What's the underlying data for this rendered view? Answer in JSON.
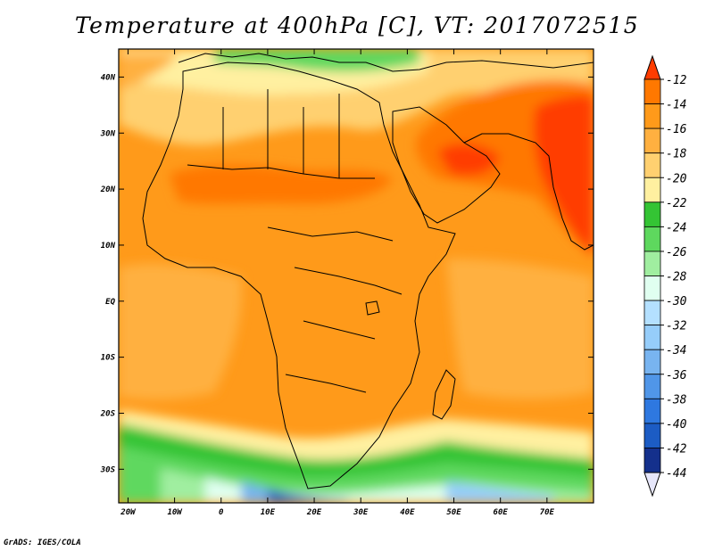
{
  "title": "Temperature at 400hPa [C], VT: 2017072515",
  "credit": "GrADS: IGES/COLA",
  "map": {
    "lon_range": [
      -22,
      80
    ],
    "lat_range": [
      -36,
      45
    ],
    "lon_ticks": [
      {
        "value": -20,
        "label": "20W"
      },
      {
        "value": -10,
        "label": "10W"
      },
      {
        "value": 0,
        "label": "0"
      },
      {
        "value": 10,
        "label": "10E"
      },
      {
        "value": 20,
        "label": "20E"
      },
      {
        "value": 30,
        "label": "30E"
      },
      {
        "value": 40,
        "label": "40E"
      },
      {
        "value": 50,
        "label": "50E"
      },
      {
        "value": 60,
        "label": "60E"
      },
      {
        "value": 70,
        "label": "70E"
      }
    ],
    "lat_ticks": [
      {
        "value": 40,
        "label": "40N"
      },
      {
        "value": 30,
        "label": "30N"
      },
      {
        "value": 20,
        "label": "20N"
      },
      {
        "value": 10,
        "label": "10N"
      },
      {
        "value": 0,
        "label": "EQ"
      },
      {
        "value": -10,
        "label": "10S"
      },
      {
        "value": -20,
        "label": "20S"
      },
      {
        "value": -30,
        "label": "30S"
      }
    ]
  },
  "colorbar": {
    "levels": [
      "-12",
      "-14",
      "-16",
      "-18",
      "-20",
      "-22",
      "-24",
      "-26",
      "-28",
      "-30",
      "-32",
      "-34",
      "-36",
      "-38",
      "-40",
      "-42",
      "-44"
    ],
    "colors": [
      "#ff3c00",
      "#ff7800",
      "#ff9a1a",
      "#ffb040",
      "#ffd070",
      "#fff0a0",
      "#34c434",
      "#5ed85e",
      "#a0eea0",
      "#e0fff0",
      "#b4e0ff",
      "#96cdfa",
      "#78b4f0",
      "#5096e8",
      "#2e78e0",
      "#1c5cc4",
      "#14308c",
      "#0c1060",
      "#e6e6fa"
    ]
  },
  "icons": {
    "top_arrow": "colorbar-max-arrow",
    "bottom_arrow": "colorbar-min-arrow"
  }
}
